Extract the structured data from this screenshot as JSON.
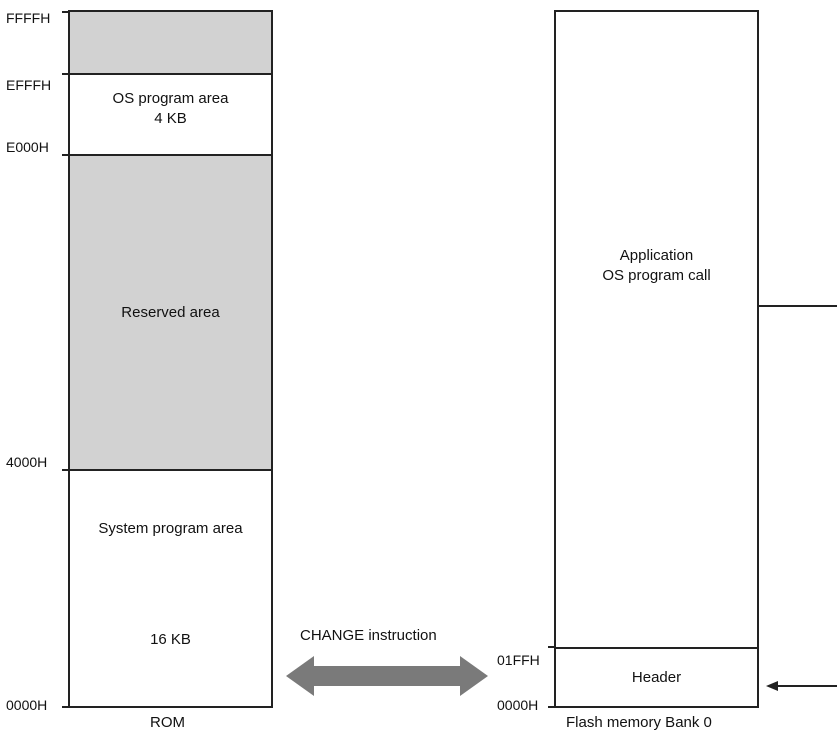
{
  "rom": {
    "caption": "ROM",
    "addresses": [
      "FFFFH",
      "EFFFH",
      "E000H",
      "4000H",
      "0000H"
    ],
    "regions": {
      "top_reserved": {
        "label": ""
      },
      "os_program": {
        "label": "OS program area",
        "size": "4 KB"
      },
      "reserved": {
        "label": "Reserved area"
      },
      "system_program": {
        "label": "System program area",
        "size": "16 KB"
      }
    },
    "colors": {
      "reserved_fill": "#d2d2d2",
      "area_fill": "#ffffff",
      "border": "#222222"
    }
  },
  "transfer": {
    "label": "CHANGE instruction",
    "arrow_color": "#7a7a7a"
  },
  "flash": {
    "caption": "Flash memory  Bank 0",
    "addresses": [
      "01FFH",
      "0000H"
    ],
    "regions": {
      "application": {
        "line1": "Application",
        "line2": "OS program call"
      },
      "header": {
        "label": "Header"
      }
    }
  }
}
